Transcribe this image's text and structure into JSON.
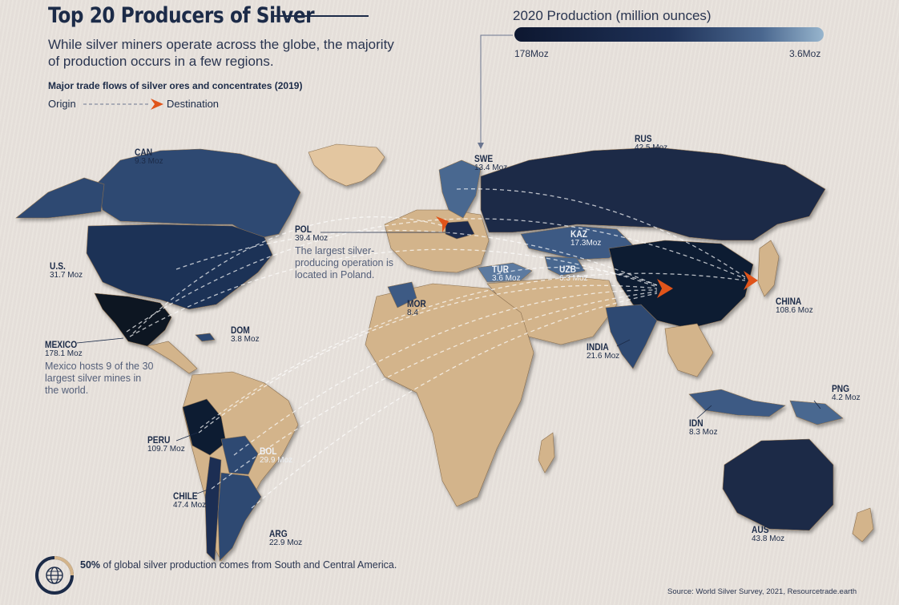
{
  "title": "Top 20 Producers of Silver",
  "subtitle": "While silver miners operate across the globe, the majority of production occurs in a few regions.",
  "trade_flows": {
    "heading": "Major trade flows of silver ores and concentrates (2019)",
    "origin_label": "Origin",
    "destination_label": "Destination"
  },
  "legend": {
    "title": "2020 Production (million ounces)",
    "min_label": "178Moz",
    "max_label": "3.6Moz"
  },
  "countries": [
    {
      "code": "CAN",
      "value": "9.3 Moz"
    },
    {
      "code": "U.S.",
      "value": "31.7 Moz"
    },
    {
      "code": "MEXICO",
      "value": "178.1 Moz"
    },
    {
      "code": "DOM",
      "value": "3.8 Moz"
    },
    {
      "code": "PERU",
      "value": "109.7 Moz"
    },
    {
      "code": "BOL",
      "value": "29.9 Moz"
    },
    {
      "code": "CHILE",
      "value": "47.4 Moz"
    },
    {
      "code": "ARG",
      "value": "22.9 Moz"
    },
    {
      "code": "SWE",
      "value": "13.4 Moz"
    },
    {
      "code": "POL",
      "value": "39.4 Moz"
    },
    {
      "code": "MOR",
      "value": "8.4"
    },
    {
      "code": "TUR",
      "value": "3.6 Moz"
    },
    {
      "code": "UZB",
      "value": "6.3 Moz"
    },
    {
      "code": "KAZ",
      "value": "17.3Moz"
    },
    {
      "code": "RUS",
      "value": "42.5 Moz"
    },
    {
      "code": "CHINA",
      "value": "108.6 Moz"
    },
    {
      "code": "INDIA",
      "value": "21.6 Moz"
    },
    {
      "code": "IDN",
      "value": "8.3 Moz"
    },
    {
      "code": "PNG",
      "value": "4.2 Moz"
    },
    {
      "code": "AUS",
      "value": "43.8 Moz"
    }
  ],
  "notes": {
    "poland": "The largest silver-producing operation is located in Poland.",
    "mexico": "Mexico hosts 9 of the 30 largest silver mines in the world."
  },
  "footer": {
    "stat_bold": "50%",
    "stat_rest": " of global silver production comes from South and Central America.",
    "source": "Source: World Silver Survey, 2021, Resourcetrade.earth"
  },
  "colors": {
    "title": "#1c2b48",
    "land_other": "#d3b48b",
    "producer_dark": "#172542",
    "producer_mid": "#2a4268",
    "producer_light": "#5b7aa0",
    "arrow": "#e0541a"
  },
  "icons": {
    "footer": "globe-icon",
    "arrow_head": "arrowhead-icon"
  }
}
